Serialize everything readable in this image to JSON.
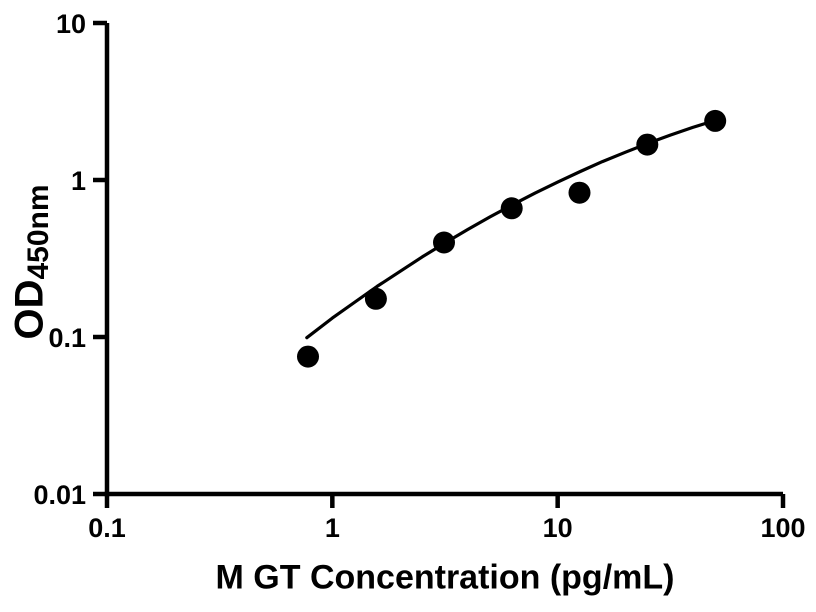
{
  "page": {
    "background_color": "#ffffff"
  },
  "chart_data": {
    "type": "scatter",
    "title": "",
    "xlabel": "M GT Concentration (pg/mL)",
    "ylabel_main": "OD",
    "ylabel_sub": "450nm",
    "x_axis": {
      "scale": "log",
      "min": 0.1,
      "max": 100,
      "ticks": [
        0.1,
        1,
        10,
        100
      ],
      "tick_labels": [
        "0.1",
        "1",
        "10",
        "100"
      ]
    },
    "y_axis": {
      "scale": "log",
      "min": 0.01,
      "max": 10,
      "ticks": [
        0.01,
        0.1,
        1,
        10
      ],
      "tick_labels": [
        "0.01",
        "0.1",
        "1",
        "10"
      ]
    },
    "grid": false,
    "legend": null,
    "marker_color": "#000000",
    "line_color": "#000000",
    "axis_color": "#000000",
    "points": [
      {
        "x": 0.78,
        "y": 0.075
      },
      {
        "x": 1.56,
        "y": 0.175
      },
      {
        "x": 3.13,
        "y": 0.4
      },
      {
        "x": 6.25,
        "y": 0.66
      },
      {
        "x": 12.5,
        "y": 0.83
      },
      {
        "x": 25,
        "y": 1.68
      },
      {
        "x": 50,
        "y": 2.38
      }
    ],
    "fit_curve": [
      [
        0.77,
        0.099
      ],
      [
        1.0,
        0.132
      ],
      [
        1.26,
        0.167
      ],
      [
        1.58,
        0.21
      ],
      [
        2.0,
        0.262
      ],
      [
        2.51,
        0.324
      ],
      [
        3.16,
        0.397
      ],
      [
        3.98,
        0.483
      ],
      [
        5.01,
        0.582
      ],
      [
        6.31,
        0.696
      ],
      [
        7.94,
        0.825
      ],
      [
        10.0,
        0.97
      ],
      [
        12.6,
        1.132
      ],
      [
        15.8,
        1.31
      ],
      [
        20.0,
        1.503
      ],
      [
        25.1,
        1.711
      ],
      [
        31.6,
        1.931
      ],
      [
        39.8,
        2.162
      ],
      [
        50.0,
        2.397
      ]
    ]
  }
}
